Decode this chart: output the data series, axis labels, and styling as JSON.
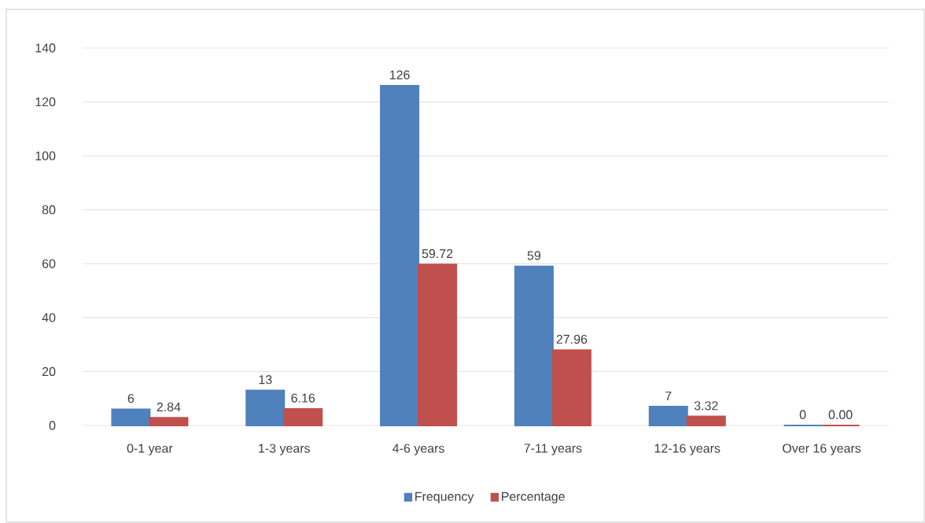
{
  "chart_data": {
    "type": "bar",
    "categories": [
      "0-1 year",
      "1-3 years",
      "4-6 years",
      "7-11 years",
      "12-16 years",
      "Over 16 years"
    ],
    "series": [
      {
        "name": "Frequency",
        "color": "#4f81bd",
        "values": [
          6,
          13,
          126,
          59,
          7,
          0
        ],
        "value_labels": [
          "6",
          "13",
          "126",
          "59",
          "7",
          "0"
        ]
      },
      {
        "name": "Percentage",
        "color": "#c0504d",
        "values": [
          2.84,
          6.16,
          59.72,
          27.96,
          3.32,
          0
        ],
        "value_labels": [
          "2.84",
          "6.16",
          "59.72",
          "27.96",
          "3.32",
          "0.00"
        ]
      }
    ],
    "ylim": [
      0,
      140
    ],
    "yticks": [
      0,
      20,
      40,
      60,
      80,
      100,
      120,
      140
    ],
    "grid": "y",
    "legend": "bottom"
  }
}
